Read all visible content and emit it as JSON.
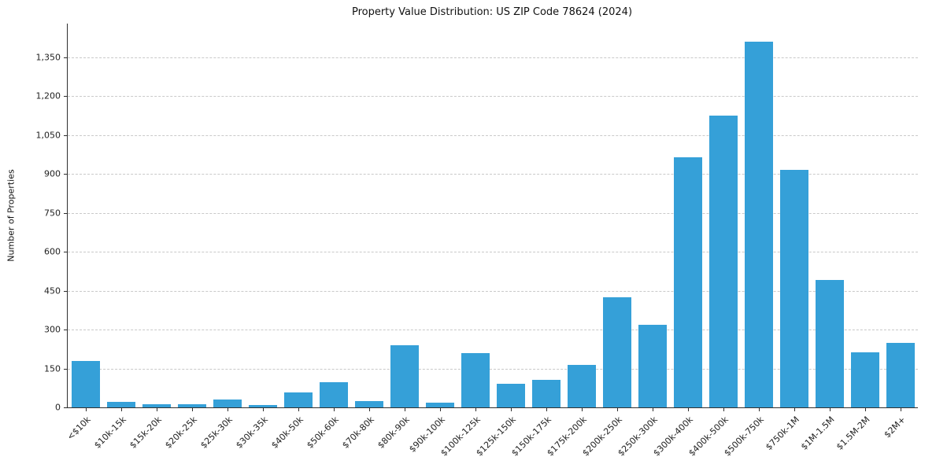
{
  "chart_data": {
    "type": "bar",
    "title": "Property Value Distribution: US ZIP Code 78624 (2024)",
    "xlabel": "",
    "ylabel": "Number of Properties",
    "categories": [
      "<$10k",
      "$10k-15k",
      "$15k-20k",
      "$20k-25k",
      "$25k-30k",
      "$30k-35k",
      "$40k-50k",
      "$50k-60k",
      "$70k-80k",
      "$80k-90k",
      "$90k-100k",
      "$100k-125k",
      "$125k-150k",
      "$150k-175k",
      "$175k-200k",
      "$200k-250k",
      "$250k-300k",
      "$300k-400k",
      "$400k-500k",
      "$500k-750k",
      "$750k-1M",
      "$1M-1.5M",
      "$1.5M-2M",
      "$2M+"
    ],
    "values": [
      180,
      20,
      12,
      12,
      30,
      8,
      57,
      97,
      24,
      240,
      18,
      210,
      90,
      105,
      165,
      425,
      320,
      965,
      1125,
      1410,
      915,
      490,
      212,
      248
    ],
    "yticks": [
      0,
      150,
      300,
      450,
      600,
      750,
      900,
      1050,
      1200,
      1350
    ],
    "ylim": [
      0,
      1480
    ],
    "grid": "horizontal-dashed",
    "legend": "none",
    "bar_color": "#35a0d8",
    "axis_color": "#2f2f2f",
    "grid_color": "#c9c9c9",
    "tick_label_color": "#222222"
  }
}
